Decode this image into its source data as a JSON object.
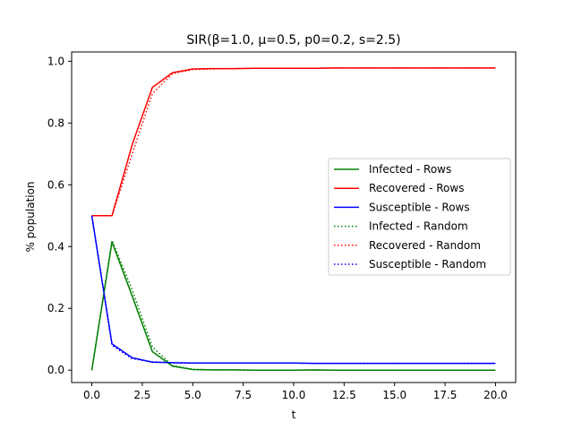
{
  "chart_data": {
    "type": "line",
    "title": "SIR(β=1.0, μ=0.5, p0=0.2, s=2.5)",
    "xlabel": "t",
    "ylabel": "% population",
    "xlim": [
      -1,
      21
    ],
    "ylim": [
      -0.04,
      1.03
    ],
    "xticks": [
      0,
      2.5,
      5,
      7.5,
      10,
      12.5,
      15,
      17.5,
      20
    ],
    "xtick_labels": [
      "0.0",
      "2.5",
      "5.0",
      "7.5",
      "10.0",
      "12.5",
      "15.0",
      "17.5",
      "20.0"
    ],
    "yticks": [
      0,
      0.2,
      0.4,
      0.6,
      0.8,
      1.0
    ],
    "ytick_labels": [
      "0.0",
      "0.2",
      "0.4",
      "0.6",
      "0.8",
      "1.0"
    ],
    "grid": false,
    "legend": "center-right",
    "x": [
      0,
      1,
      2,
      3,
      4,
      5,
      6,
      7,
      8,
      9,
      10,
      11,
      12,
      13,
      14,
      15,
      16,
      17,
      18,
      19,
      20
    ],
    "series": [
      {
        "name": "Infected - Rows",
        "color": "#008000",
        "style": "solid",
        "values": [
          0.0,
          0.415,
          0.24,
          0.06,
          0.013,
          0.002,
          0.001,
          0.001,
          0.0,
          0.0,
          0.0,
          0.001,
          0.0,
          0.0,
          0.0,
          0.0,
          0.0,
          0.0,
          0.0,
          0.0,
          0.0
        ]
      },
      {
        "name": "Recovered - Rows",
        "color": "#ff0000",
        "style": "solid",
        "values": [
          0.5,
          0.5,
          0.73,
          0.915,
          0.963,
          0.975,
          0.976,
          0.976,
          0.977,
          0.977,
          0.977,
          0.977,
          0.978,
          0.978,
          0.978,
          0.978,
          0.978,
          0.978,
          0.978,
          0.978,
          0.978
        ]
      },
      {
        "name": "Susceptible - Rows",
        "color": "#0000ff",
        "style": "solid",
        "values": [
          0.5,
          0.085,
          0.04,
          0.026,
          0.024,
          0.023,
          0.023,
          0.023,
          0.023,
          0.023,
          0.023,
          0.022,
          0.022,
          0.022,
          0.022,
          0.022,
          0.022,
          0.022,
          0.022,
          0.022,
          0.022
        ]
      },
      {
        "name": "Infected - Random",
        "color": "#008000",
        "style": "dotted",
        "values": [
          0.0,
          0.42,
          0.26,
          0.075,
          0.015,
          0.003,
          0.001,
          0.001,
          0.0,
          0.0,
          0.0,
          0.0,
          0.0,
          0.0,
          0.0,
          0.0,
          0.0,
          0.0,
          0.0,
          0.0,
          0.0
        ]
      },
      {
        "name": "Recovered - Random",
        "color": "#ff0000",
        "style": "dotted",
        "values": [
          0.5,
          0.5,
          0.7,
          0.895,
          0.96,
          0.973,
          0.975,
          0.976,
          0.977,
          0.977,
          0.977,
          0.977,
          0.978,
          0.978,
          0.978,
          0.978,
          0.978,
          0.978,
          0.978,
          0.978,
          0.978
        ]
      },
      {
        "name": "Susceptible - Random",
        "color": "#0000ff",
        "style": "dotted",
        "values": [
          0.5,
          0.08,
          0.037,
          0.027,
          0.024,
          0.023,
          0.023,
          0.023,
          0.023,
          0.023,
          0.023,
          0.022,
          0.022,
          0.022,
          0.022,
          0.022,
          0.022,
          0.022,
          0.022,
          0.022,
          0.022
        ]
      }
    ]
  }
}
